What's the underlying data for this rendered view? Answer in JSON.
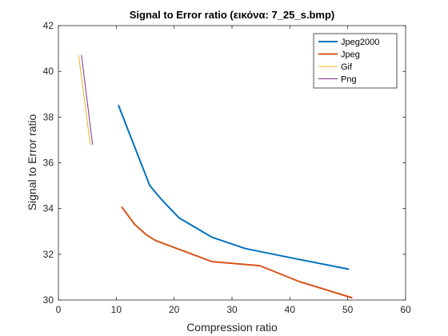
{
  "chart_data": {
    "type": "line",
    "title": "Signal to Error ratio (εικόνα: 7_25_s.bmp)",
    "xlabel": "Compression ratio",
    "ylabel": "Signal to Error ratio",
    "xlim": [
      0,
      60
    ],
    "ylim": [
      30,
      42
    ],
    "xticks": [
      0,
      10,
      20,
      30,
      40,
      50,
      60
    ],
    "yticks": [
      30,
      32,
      34,
      36,
      38,
      40,
      42
    ],
    "grid": false,
    "legend_position": "top-right",
    "series": [
      {
        "name": "Jpeg2000",
        "color": "#0072BD",
        "width": 2,
        "points": [
          [
            10.4,
            38.5
          ],
          [
            12.4,
            37.2
          ],
          [
            15.8,
            35.0
          ],
          [
            17.8,
            34.4
          ],
          [
            20.8,
            33.6
          ],
          [
            26.5,
            32.75
          ],
          [
            32.3,
            32.25
          ],
          [
            41.1,
            31.8
          ],
          [
            50.1,
            31.35
          ]
        ]
      },
      {
        "name": "Jpeg",
        "color": "#D95319",
        "width": 2,
        "points": [
          [
            11.0,
            34.05
          ],
          [
            13.2,
            33.3
          ],
          [
            15.2,
            32.85
          ],
          [
            16.8,
            32.6
          ],
          [
            20.5,
            32.25
          ],
          [
            26.5,
            31.68
          ],
          [
            34.8,
            31.5
          ],
          [
            41.7,
            30.8
          ],
          [
            50.7,
            30.1
          ]
        ]
      },
      {
        "name": "Gif",
        "color": "#EDB120",
        "width": 1,
        "points": [
          [
            3.5,
            40.7
          ],
          [
            5.5,
            36.8
          ]
        ]
      },
      {
        "name": "Png",
        "color": "#7E2F8E",
        "width": 1,
        "points": [
          [
            4.0,
            40.7
          ],
          [
            5.9,
            36.8
          ]
        ]
      }
    ]
  }
}
